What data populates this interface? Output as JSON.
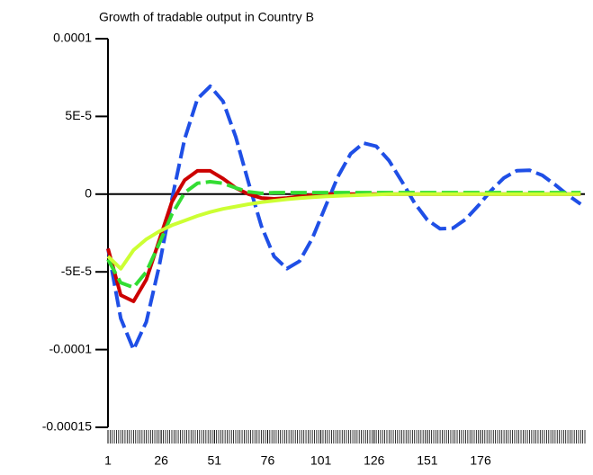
{
  "chart_data": {
    "type": "line",
    "title": "Growth of tradable output in Country B",
    "x": [
      1,
      7,
      13,
      19,
      25,
      31,
      37,
      43,
      49,
      55,
      61,
      67,
      73,
      79,
      85,
      91,
      97,
      103,
      109,
      115,
      121,
      127,
      133,
      139,
      145,
      151,
      157,
      163,
      169,
      175,
      181,
      187,
      193,
      199,
      205,
      211,
      217,
      223
    ],
    "xlim": [
      1,
      225
    ],
    "xticks": [
      1,
      26,
      51,
      76,
      101,
      126,
      151,
      176
    ],
    "ylim": [
      -0.00015,
      0.0001
    ],
    "yticks": [
      -0.00015,
      -0.0001,
      {
        "value": -5e-05,
        "label": "-5E-5"
      },
      0,
      {
        "value": 5e-05,
        "label": "5E-5"
      },
      0.0001
    ],
    "series": [
      {
        "color": "#1f4fe6",
        "dashed": true,
        "values": [
          -3.5e-05,
          -8e-05,
          -0.0001,
          -8.22e-05,
          -4.65e-05,
          -3.5e-06,
          3.55e-05,
          6.13e-05,
          6.94e-05,
          5.98e-05,
          3.68e-05,
          7.4e-06,
          -2.04e-05,
          -4.01e-05,
          -4.79e-05,
          -4.31e-05,
          -2.84e-05,
          -8.5e-06,
          1.12e-05,
          2.6e-05,
          3.28e-05,
          3.08e-05,
          2.16e-05,
          8.2e-06,
          -5.7e-06,
          -1.66e-05,
          -2.23e-05,
          -2.19e-05,
          -1.62e-05,
          -7.3e-06,
          2.4e-06,
          1.05e-05,
          1.51e-05,
          1.54e-05,
          1.21e-05,
          6.1e-06,
          -6e-07,
          -6.4e-06
        ]
      },
      {
        "color": "#cc0000",
        "dashed": false,
        "values": [
          -3.5e-05,
          -6.5e-05,
          -6.9e-05,
          -5.5e-05,
          -3e-05,
          -5e-06,
          9e-06,
          1.5e-05,
          1.5e-05,
          1e-05,
          4e-06,
          0,
          -2.5e-06,
          -3e-06,
          -2.5e-06,
          -1.5e-06,
          -5e-07,
          0,
          0,
          0,
          0,
          0,
          0,
          0,
          0,
          0,
          0,
          0,
          0,
          0,
          0,
          0,
          0,
          0,
          0,
          0,
          0,
          0
        ]
      },
      {
        "color": "#33dd33",
        "dashed": true,
        "values": [
          -4.2e-05,
          -5.7e-05,
          -6e-05,
          -5e-05,
          -3.2e-05,
          -1.3e-05,
          1e-06,
          7e-06,
          8e-06,
          7e-06,
          4e-06,
          1.5e-06,
          5e-07,
          1e-06,
          1e-06,
          1e-06,
          1e-06,
          1e-06,
          1e-06,
          1e-06,
          1e-06,
          1e-06,
          1e-06,
          1e-06,
          1e-06,
          1e-06,
          1e-06,
          1e-06,
          1e-06,
          1e-06,
          1e-06,
          1e-06,
          1e-06,
          1e-06,
          1e-06,
          1e-06,
          1e-06,
          1e-06
        ]
      },
      {
        "color": "#ccff33",
        "dashed": false,
        "values": [
          -4e-05,
          -4.8e-05,
          -3.6e-05,
          -2.9e-05,
          -2.4e-05,
          -2e-05,
          -1.7e-05,
          -1.4e-05,
          -1.15e-05,
          -9.5e-06,
          -8e-06,
          -6.5e-06,
          -5.2e-06,
          -4.2e-06,
          -3.3e-06,
          -2.6e-06,
          -2e-06,
          -1.5e-06,
          -1.1e-06,
          -8e-07,
          -5e-07,
          -3e-07,
          0,
          0,
          0,
          0,
          0,
          0,
          0,
          0,
          0,
          0,
          0,
          0,
          0,
          0,
          0,
          0
        ]
      }
    ]
  }
}
